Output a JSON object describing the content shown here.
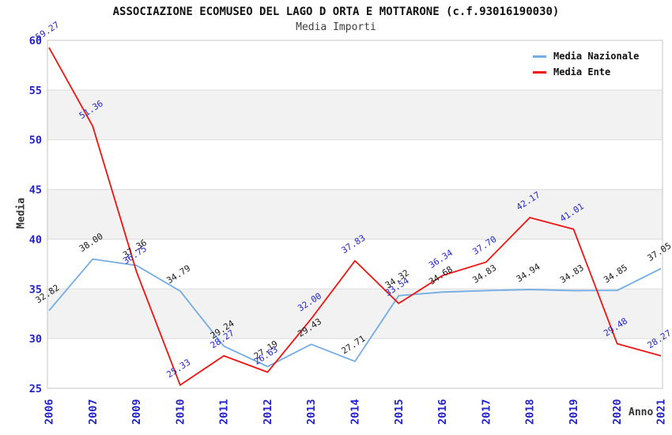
{
  "title": "ASSOCIAZIONE ECOMUSEO DEL LAGO D ORTA E MOTTARONE (c.f.93016190030)",
  "subtitle": "Media Importi",
  "axes": {
    "y_label": "Media",
    "x_label": "Anno",
    "y_ticks": [
      60,
      55,
      50,
      45,
      40,
      35,
      30,
      25
    ],
    "x_ticks": [
      "2006",
      "2007",
      "2009",
      "2010",
      "2011",
      "2012",
      "2013",
      "2014",
      "2015",
      "2016",
      "2017",
      "2018",
      "2019",
      "2020",
      "2021"
    ]
  },
  "legend": {
    "items": [
      {
        "label": "Media Nazionale",
        "color": "#74ACE4"
      },
      {
        "label": "Media Ente",
        "color": "#EF1411"
      }
    ]
  },
  "colors": {
    "nazionale_line": "#74ACE4",
    "ente_line": "#EF1411",
    "tick_label": "#2222CC",
    "nazionale_point_label": "#1a1a1a",
    "ente_point_label": "#2525CE",
    "band_gray": "#F2F2F2",
    "gridline": "#DCDCDC",
    "plot_border": "#C4C4C4",
    "title_color": "#111111",
    "subtitle_color": "#3f3f3f"
  },
  "chart_data": {
    "type": "line",
    "title": "ASSOCIAZIONE ECOMUSEO DEL LAGO D ORTA E MOTTARONE (c.f.93016190030)",
    "subtitle": "Media Importi",
    "xlabel": "Anno",
    "ylabel": "Media",
    "ylim": [
      25,
      60
    ],
    "grid": true,
    "legend_position": "top-right",
    "bands_gray": [
      [
        30,
        35
      ],
      [
        40,
        45
      ],
      [
        50,
        55
      ]
    ],
    "categories": [
      "2006",
      "2007",
      "2009",
      "2010",
      "2011",
      "2012",
      "2013",
      "2014",
      "2015",
      "2016",
      "2017",
      "2018",
      "2019",
      "2020",
      "2021"
    ],
    "series": [
      {
        "name": "Media Nazionale",
        "color": "#74ACE4",
        "label_color": "#1a1a1a",
        "values": [
          32.82,
          38.0,
          37.36,
          34.79,
          29.24,
          27.19,
          29.43,
          27.71,
          34.32,
          34.68,
          34.83,
          34.94,
          34.83,
          34.85,
          37.05
        ]
      },
      {
        "name": "Media Ente",
        "color": "#EF1411",
        "label_color": "#2525CE",
        "values": [
          59.27,
          51.36,
          36.75,
          25.33,
          28.27,
          26.63,
          32.0,
          37.83,
          33.54,
          36.34,
          37.7,
          42.17,
          41.01,
          29.48,
          28.27
        ]
      }
    ]
  }
}
